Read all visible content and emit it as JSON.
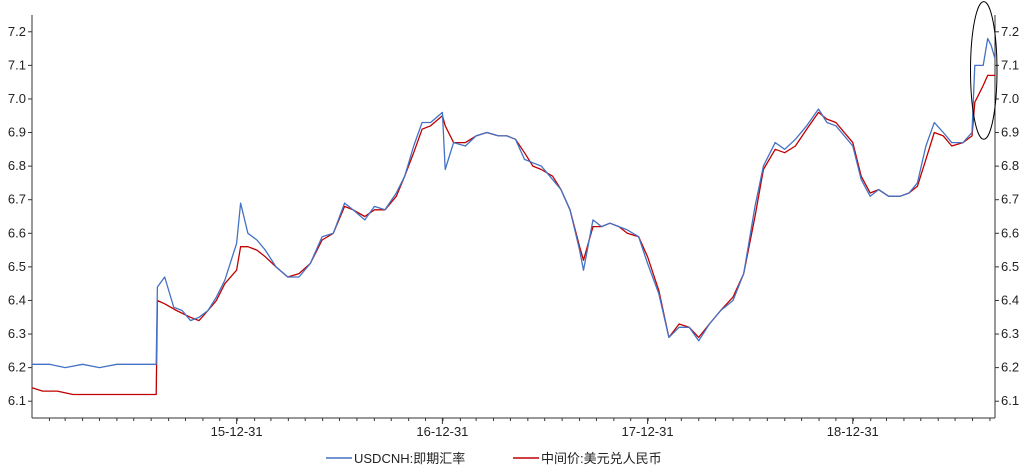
{
  "chart_data": {
    "type": "line",
    "title": "",
    "xlabel": "",
    "ylabel": "",
    "ylim": [
      6.05,
      7.25
    ],
    "y_ticks": [
      "6.1",
      "6.2",
      "6.3",
      "6.4",
      "6.5",
      "6.6",
      "6.7",
      "6.8",
      "6.9",
      "7.0",
      "7.1",
      "7.2"
    ],
    "x_range": [
      "2015-01-01",
      "2019-09-10"
    ],
    "x_tick_labels": [
      {
        "date": "2015-12-31",
        "label": "15-12-31"
      },
      {
        "date": "2016-12-31",
        "label": "16-12-31"
      },
      {
        "date": "2017-12-31",
        "label": "17-12-31"
      },
      {
        "date": "2018-12-31",
        "label": "18-12-31"
      }
    ],
    "grid": false,
    "dual_y_axis": true,
    "legend_position": "bottom",
    "series": [
      {
        "name": "USDCNH:即期汇率",
        "color": "#4472C4",
        "points": [
          [
            "2015-01-01",
            6.21
          ],
          [
            "2015-01-15",
            6.21
          ],
          [
            "2015-02-01",
            6.21
          ],
          [
            "2015-03-01",
            6.2
          ],
          [
            "2015-04-01",
            6.21
          ],
          [
            "2015-05-01",
            6.2
          ],
          [
            "2015-06-01",
            6.21
          ],
          [
            "2015-07-01",
            6.21
          ],
          [
            "2015-08-10",
            6.21
          ],
          [
            "2015-08-12",
            6.44
          ],
          [
            "2015-08-25",
            6.47
          ],
          [
            "2015-09-10",
            6.38
          ],
          [
            "2015-09-25",
            6.37
          ],
          [
            "2015-10-10",
            6.34
          ],
          [
            "2015-10-25",
            6.35
          ],
          [
            "2015-11-10",
            6.37
          ],
          [
            "2015-11-25",
            6.41
          ],
          [
            "2015-12-10",
            6.46
          ],
          [
            "2015-12-31",
            6.57
          ],
          [
            "2016-01-07",
            6.69
          ],
          [
            "2016-01-20",
            6.6
          ],
          [
            "2016-02-05",
            6.58
          ],
          [
            "2016-02-20",
            6.55
          ],
          [
            "2016-03-10",
            6.5
          ],
          [
            "2016-03-31",
            6.47
          ],
          [
            "2016-04-20",
            6.47
          ],
          [
            "2016-05-10",
            6.51
          ],
          [
            "2016-05-31",
            6.59
          ],
          [
            "2016-06-20",
            6.6
          ],
          [
            "2016-07-10",
            6.69
          ],
          [
            "2016-07-25",
            6.67
          ],
          [
            "2016-08-15",
            6.64
          ],
          [
            "2016-09-01",
            6.68
          ],
          [
            "2016-09-20",
            6.67
          ],
          [
            "2016-10-10",
            6.72
          ],
          [
            "2016-10-25",
            6.77
          ],
          [
            "2016-11-10",
            6.86
          ],
          [
            "2016-11-25",
            6.93
          ],
          [
            "2016-12-10",
            6.93
          ],
          [
            "2016-12-31",
            6.96
          ],
          [
            "2017-01-05",
            6.79
          ],
          [
            "2017-01-20",
            6.87
          ],
          [
            "2017-02-10",
            6.86
          ],
          [
            "2017-03-01",
            6.89
          ],
          [
            "2017-03-20",
            6.9
          ],
          [
            "2017-04-10",
            6.89
          ],
          [
            "2017-04-25",
            6.89
          ],
          [
            "2017-05-10",
            6.88
          ],
          [
            "2017-05-26",
            6.82
          ],
          [
            "2017-06-10",
            6.81
          ],
          [
            "2017-06-25",
            6.8
          ],
          [
            "2017-07-15",
            6.76
          ],
          [
            "2017-07-30",
            6.73
          ],
          [
            "2017-08-15",
            6.67
          ],
          [
            "2017-09-01",
            6.55
          ],
          [
            "2017-09-08",
            6.49
          ],
          [
            "2017-09-25",
            6.64
          ],
          [
            "2017-10-10",
            6.62
          ],
          [
            "2017-10-25",
            6.63
          ],
          [
            "2017-11-10",
            6.62
          ],
          [
            "2017-11-25",
            6.61
          ],
          [
            "2017-12-15",
            6.59
          ],
          [
            "2017-12-31",
            6.51
          ],
          [
            "2018-01-20",
            6.42
          ],
          [
            "2018-02-07",
            6.29
          ],
          [
            "2018-02-25",
            6.32
          ],
          [
            "2018-03-15",
            6.32
          ],
          [
            "2018-04-01",
            6.28
          ],
          [
            "2018-04-20",
            6.33
          ],
          [
            "2018-05-10",
            6.37
          ],
          [
            "2018-06-01",
            6.4
          ],
          [
            "2018-06-20",
            6.48
          ],
          [
            "2018-07-10",
            6.68
          ],
          [
            "2018-07-25",
            6.8
          ],
          [
            "2018-08-15",
            6.87
          ],
          [
            "2018-09-01",
            6.85
          ],
          [
            "2018-09-20",
            6.88
          ],
          [
            "2018-10-10",
            6.92
          ],
          [
            "2018-10-31",
            6.97
          ],
          [
            "2018-11-15",
            6.93
          ],
          [
            "2018-12-01",
            6.92
          ],
          [
            "2018-12-31",
            6.86
          ],
          [
            "2019-01-15",
            6.76
          ],
          [
            "2019-01-31",
            6.71
          ],
          [
            "2019-02-15",
            6.73
          ],
          [
            "2019-03-05",
            6.71
          ],
          [
            "2019-03-25",
            6.71
          ],
          [
            "2019-04-10",
            6.72
          ],
          [
            "2019-04-25",
            6.75
          ],
          [
            "2019-05-10",
            6.86
          ],
          [
            "2019-05-25",
            6.93
          ],
          [
            "2019-06-10",
            6.9
          ],
          [
            "2019-06-25",
            6.87
          ],
          [
            "2019-07-15",
            6.87
          ],
          [
            "2019-07-31",
            6.9
          ],
          [
            "2019-08-05",
            7.1
          ],
          [
            "2019-08-20",
            7.1
          ],
          [
            "2019-08-28",
            7.18
          ],
          [
            "2019-09-03",
            7.16
          ],
          [
            "2019-09-10",
            7.12
          ]
        ]
      },
      {
        "name": "中间价:美元兑人民币",
        "color": "#C00000",
        "points": [
          [
            "2015-01-01",
            6.14
          ],
          [
            "2015-01-20",
            6.13
          ],
          [
            "2015-02-15",
            6.13
          ],
          [
            "2015-03-15",
            6.12
          ],
          [
            "2015-04-15",
            6.12
          ],
          [
            "2015-05-15",
            6.12
          ],
          [
            "2015-06-15",
            6.12
          ],
          [
            "2015-07-15",
            6.12
          ],
          [
            "2015-08-10",
            6.12
          ],
          [
            "2015-08-12",
            6.4
          ],
          [
            "2015-08-25",
            6.39
          ],
          [
            "2015-09-15",
            6.37
          ],
          [
            "2015-10-10",
            6.35
          ],
          [
            "2015-10-25",
            6.34
          ],
          [
            "2015-11-10",
            6.37
          ],
          [
            "2015-11-25",
            6.4
          ],
          [
            "2015-12-10",
            6.45
          ],
          [
            "2015-12-31",
            6.49
          ],
          [
            "2016-01-07",
            6.56
          ],
          [
            "2016-01-20",
            6.56
          ],
          [
            "2016-02-05",
            6.55
          ],
          [
            "2016-02-20",
            6.53
          ],
          [
            "2016-03-10",
            6.5
          ],
          [
            "2016-03-31",
            6.47
          ],
          [
            "2016-04-20",
            6.48
          ],
          [
            "2016-05-10",
            6.51
          ],
          [
            "2016-05-31",
            6.58
          ],
          [
            "2016-06-20",
            6.6
          ],
          [
            "2016-07-10",
            6.68
          ],
          [
            "2016-07-25",
            6.67
          ],
          [
            "2016-08-15",
            6.65
          ],
          [
            "2016-09-01",
            6.67
          ],
          [
            "2016-09-20",
            6.67
          ],
          [
            "2016-10-10",
            6.71
          ],
          [
            "2016-10-25",
            6.77
          ],
          [
            "2016-11-10",
            6.84
          ],
          [
            "2016-11-25",
            6.91
          ],
          [
            "2016-12-10",
            6.92
          ],
          [
            "2016-12-31",
            6.95
          ],
          [
            "2017-01-05",
            6.92
          ],
          [
            "2017-01-20",
            6.87
          ],
          [
            "2017-02-10",
            6.87
          ],
          [
            "2017-03-01",
            6.89
          ],
          [
            "2017-03-20",
            6.9
          ],
          [
            "2017-04-10",
            6.89
          ],
          [
            "2017-04-25",
            6.89
          ],
          [
            "2017-05-10",
            6.88
          ],
          [
            "2017-05-26",
            6.84
          ],
          [
            "2017-06-10",
            6.8
          ],
          [
            "2017-06-25",
            6.79
          ],
          [
            "2017-07-15",
            6.77
          ],
          [
            "2017-07-30",
            6.73
          ],
          [
            "2017-08-15",
            6.67
          ],
          [
            "2017-09-01",
            6.56
          ],
          [
            "2017-09-08",
            6.52
          ],
          [
            "2017-09-25",
            6.62
          ],
          [
            "2017-10-10",
            6.62
          ],
          [
            "2017-10-25",
            6.63
          ],
          [
            "2017-11-10",
            6.62
          ],
          [
            "2017-11-25",
            6.6
          ],
          [
            "2017-12-15",
            6.59
          ],
          [
            "2017-12-31",
            6.53
          ],
          [
            "2018-01-20",
            6.43
          ],
          [
            "2018-02-07",
            6.29
          ],
          [
            "2018-02-25",
            6.33
          ],
          [
            "2018-03-15",
            6.32
          ],
          [
            "2018-04-01",
            6.29
          ],
          [
            "2018-04-20",
            6.33
          ],
          [
            "2018-05-10",
            6.37
          ],
          [
            "2018-06-01",
            6.41
          ],
          [
            "2018-06-20",
            6.48
          ],
          [
            "2018-07-10",
            6.65
          ],
          [
            "2018-07-25",
            6.79
          ],
          [
            "2018-08-15",
            6.85
          ],
          [
            "2018-09-01",
            6.84
          ],
          [
            "2018-09-20",
            6.86
          ],
          [
            "2018-10-10",
            6.91
          ],
          [
            "2018-10-31",
            6.96
          ],
          [
            "2018-11-15",
            6.94
          ],
          [
            "2018-12-01",
            6.93
          ],
          [
            "2018-12-31",
            6.87
          ],
          [
            "2019-01-15",
            6.77
          ],
          [
            "2019-01-31",
            6.72
          ],
          [
            "2019-02-15",
            6.73
          ],
          [
            "2019-03-05",
            6.71
          ],
          [
            "2019-03-25",
            6.71
          ],
          [
            "2019-04-10",
            6.72
          ],
          [
            "2019-04-25",
            6.74
          ],
          [
            "2019-05-10",
            6.82
          ],
          [
            "2019-05-25",
            6.9
          ],
          [
            "2019-06-10",
            6.89
          ],
          [
            "2019-06-25",
            6.86
          ],
          [
            "2019-07-15",
            6.87
          ],
          [
            "2019-07-31",
            6.89
          ],
          [
            "2019-08-05",
            6.99
          ],
          [
            "2019-08-20",
            7.04
          ],
          [
            "2019-08-28",
            7.07
          ],
          [
            "2019-09-03",
            7.07
          ],
          [
            "2019-09-10",
            7.07
          ]
        ]
      }
    ],
    "annotations": [
      {
        "type": "ellipse",
        "x_range": [
          "2019-08-01",
          "2019-09-10"
        ],
        "y_range": [
          6.88,
          7.29
        ],
        "color": "#000000"
      }
    ]
  }
}
